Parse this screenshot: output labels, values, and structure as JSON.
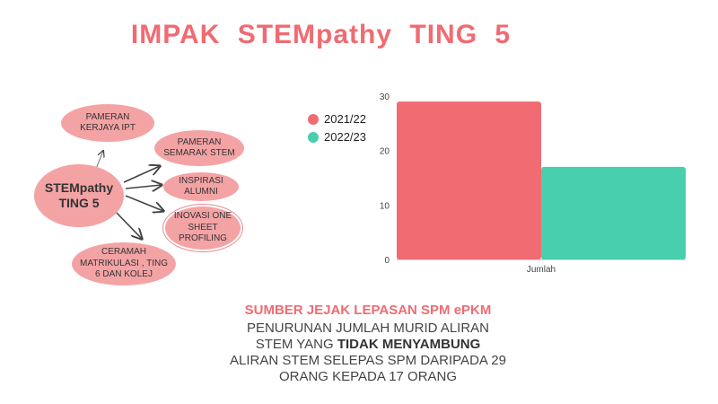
{
  "title": "IMPAK  STEMpathy  TING 5",
  "diagram": {
    "center": "STEMpathy TING 5",
    "nodes": [
      {
        "id": "pameran-kerjaya",
        "label": "PAMERAN KERJAYA IPT"
      },
      {
        "id": "pameran-semarak",
        "label": "PAMERAN SEMARAK STEM"
      },
      {
        "id": "inspirasi-alumni",
        "label": "INSPIRASI ALUMNI"
      },
      {
        "id": "inovasi",
        "label": "INOVASI ONE SHEET PROFILING"
      },
      {
        "id": "ceramah",
        "label": "CERAMAH MATRIKULASI , TING 6 DAN KOLEJ"
      }
    ]
  },
  "chart_data": {
    "type": "bar",
    "categories": [
      "Jumlah"
    ],
    "series": [
      {
        "name": "2021/22",
        "values": [
          29
        ],
        "color": "#f06b72"
      },
      {
        "name": "2022/23",
        "values": [
          17
        ],
        "color": "#48cfad"
      }
    ],
    "ylim": [
      0,
      30
    ],
    "yticks": [
      0,
      10,
      20,
      30
    ],
    "legend_position": "left",
    "grid": false
  },
  "caption": {
    "source": "SUMBER JEJAK LEPASAN SPM ePKM",
    "line1": "PENURUNAN JUMLAH MURID  ALIRAN",
    "line2_a": "STEM YANG ",
    "line2_b": "TIDAK MENYAMBUNG",
    "line3": "ALIRAN STEM SELEPAS SPM DARIPADA 29",
    "line4": "ORANG KEPADA 17 ORANG"
  }
}
